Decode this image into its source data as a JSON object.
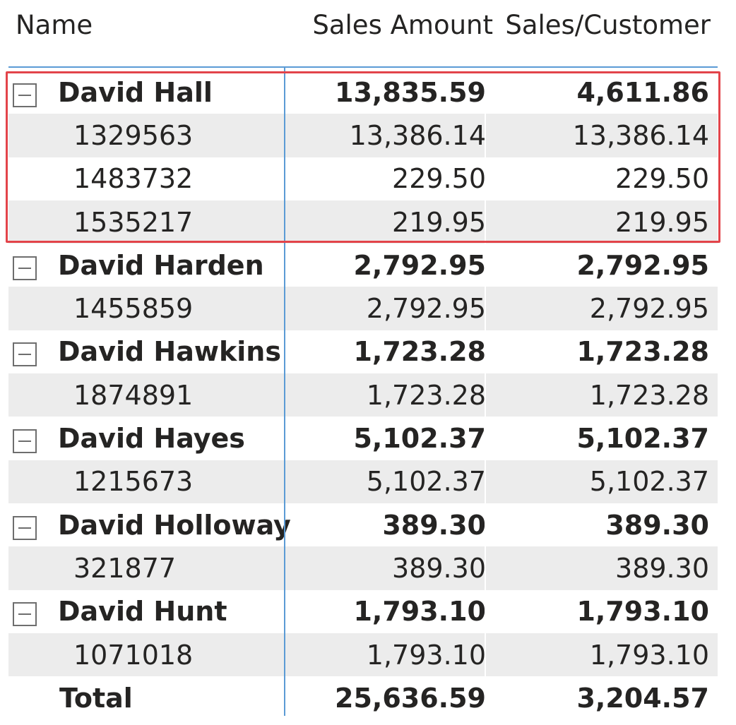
{
  "header": {
    "name": "Name",
    "sales_amount": "Sales Amount",
    "sales_per_customer": "Sales/Customer"
  },
  "rows": [
    {
      "level": "parent",
      "name": "David Hall",
      "amount": "13,835.59",
      "per_customer": "4,611.86"
    },
    {
      "level": "child",
      "name": "1329563",
      "amount": "13,386.14",
      "per_customer": "13,386.14"
    },
    {
      "level": "child",
      "name": "1483732",
      "amount": "229.50",
      "per_customer": "229.50"
    },
    {
      "level": "child",
      "name": "1535217",
      "amount": "219.95",
      "per_customer": "219.95"
    },
    {
      "level": "parent",
      "name": "David Harden",
      "amount": "2,792.95",
      "per_customer": "2,792.95"
    },
    {
      "level": "child",
      "name": "1455859",
      "amount": "2,792.95",
      "per_customer": "2,792.95"
    },
    {
      "level": "parent",
      "name": "David Hawkins",
      "amount": "1,723.28",
      "per_customer": "1,723.28"
    },
    {
      "level": "child",
      "name": "1874891",
      "amount": "1,723.28",
      "per_customer": "1,723.28"
    },
    {
      "level": "parent",
      "name": "David Hayes",
      "amount": "5,102.37",
      "per_customer": "5,102.37"
    },
    {
      "level": "child",
      "name": "1215673",
      "amount": "5,102.37",
      "per_customer": "5,102.37"
    },
    {
      "level": "parent",
      "name": "David Holloway",
      "amount": "389.30",
      "per_customer": "389.30"
    },
    {
      "level": "child",
      "name": "321877",
      "amount": "389.30",
      "per_customer": "389.30"
    },
    {
      "level": "parent",
      "name": "David Hunt",
      "amount": "1,793.10",
      "per_customer": "1,793.10"
    },
    {
      "level": "child",
      "name": "1071018",
      "amount": "1,793.10",
      "per_customer": "1,793.10"
    }
  ],
  "total": {
    "name": "Total",
    "amount": "25,636.59",
    "per_customer": "3,204.57"
  },
  "colors": {
    "accent_divider": "#5b9bd5",
    "highlight_border": "#e3444a",
    "row_band": "#ececec",
    "text": "#252423"
  },
  "icons": {
    "expander": "collapse-minus-icon"
  }
}
